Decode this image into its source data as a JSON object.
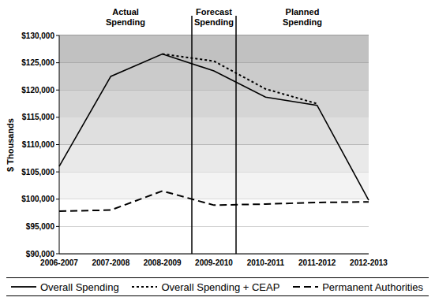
{
  "chart_data": {
    "type": "line",
    "y_label": "$ Thousands",
    "categories": [
      "2006-2007",
      "2007-2008",
      "2008-2009",
      "2009-2010",
      "2010-2011",
      "2011-2012",
      "2012-2013"
    ],
    "series": [
      {
        "name": "Overall Spending",
        "color": "#000000",
        "line_style": "solid",
        "values": [
          106000,
          122500,
          126600,
          123500,
          118700,
          117200,
          99800
        ]
      },
      {
        "name": "Overall Spending + CEAP",
        "color": "#000000",
        "line_style": "dotted",
        "values": [
          null,
          null,
          126600,
          125300,
          120200,
          117500,
          null
        ]
      },
      {
        "name": "Permanent Authorities",
        "color": "#000000",
        "line_style": "dashed",
        "values": [
          97800,
          98000,
          101500,
          98900,
          99100,
          99400,
          99500
        ]
      }
    ],
    "ylim": [
      90000,
      130000
    ],
    "yticks": [
      {
        "value": 90000,
        "label": "$90,000"
      },
      {
        "value": 95000,
        "label": "$95,000"
      },
      {
        "value": 100000,
        "label": "$100,000"
      },
      {
        "value": 105000,
        "label": "$105,000"
      },
      {
        "value": 110000,
        "label": "$110,000"
      },
      {
        "value": 115000,
        "label": "$115,000"
      },
      {
        "value": 120000,
        "label": "$120,000"
      },
      {
        "value": 125000,
        "label": "$125,000"
      },
      {
        "value": 130000,
        "label": "$130,000"
      }
    ],
    "grid": true,
    "legend": "bottom",
    "annotations": [
      {
        "text": "Actual Spending",
        "from": "2006-2007",
        "to": "2008-2009"
      },
      {
        "text": "Forecast Spending",
        "from": "2009-2010",
        "to": "2009-2010"
      },
      {
        "text": "Planned Spending",
        "from": "2010-2011",
        "to": "2012-2013"
      }
    ]
  }
}
